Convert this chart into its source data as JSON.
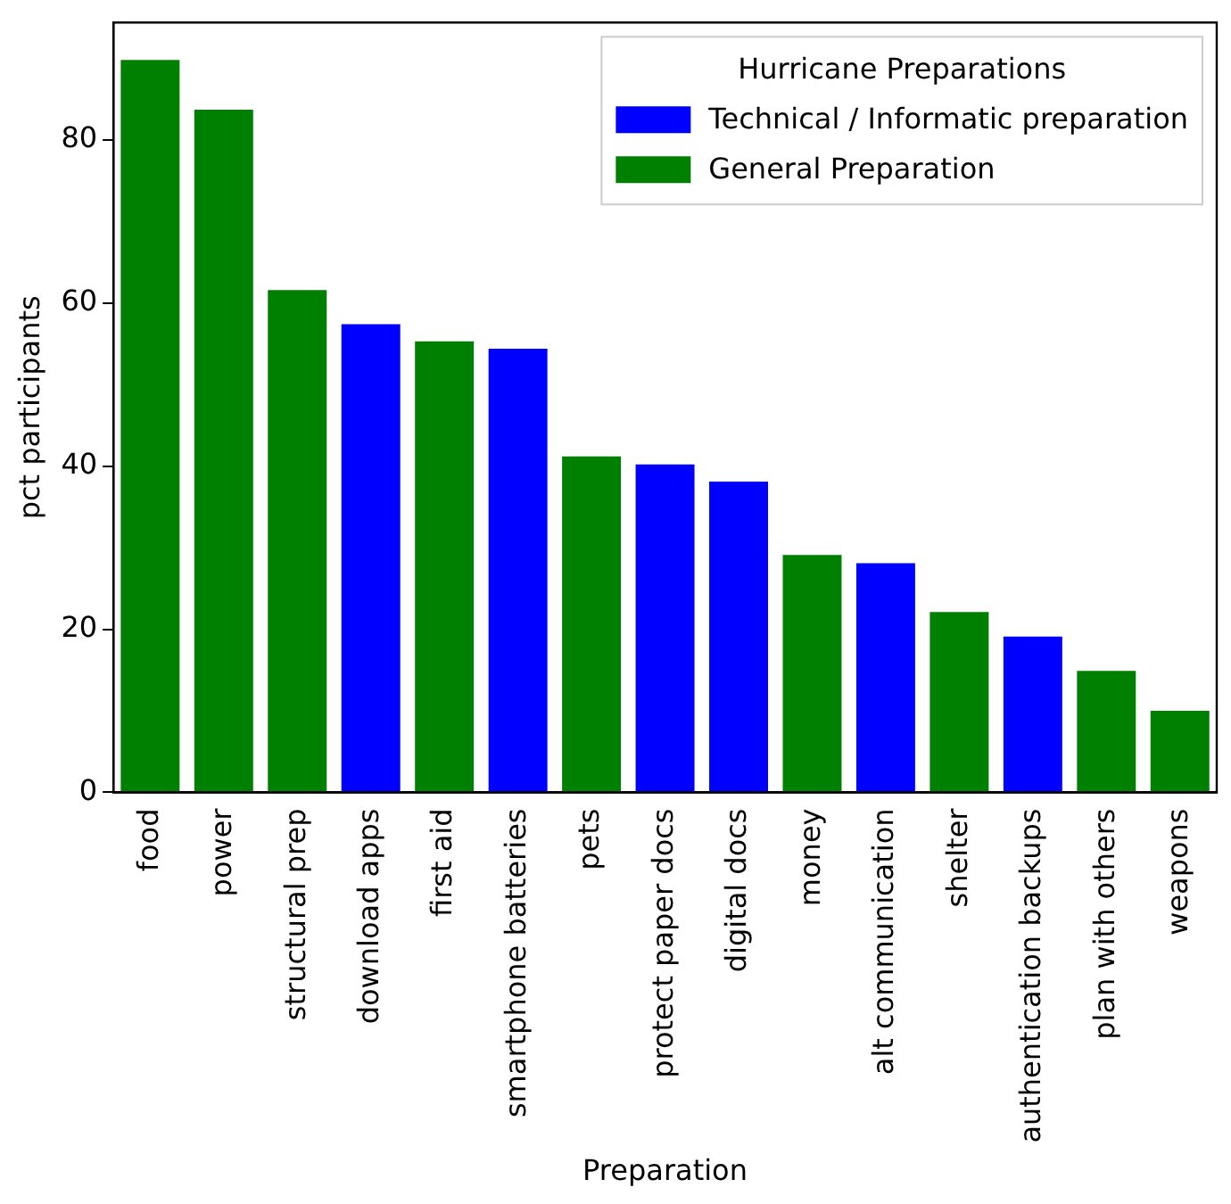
{
  "chart_data": {
    "type": "bar",
    "xlabel": "Preparation",
    "ylabel": "pct participants",
    "legend_title": "Hurricane Preparations",
    "legend": "top right",
    "grid": false,
    "categories": [
      "food",
      "power",
      "structural prep",
      "download apps",
      "first aid",
      "smartphone batteries",
      "pets",
      "protect paper docs",
      "digital docs",
      "money",
      "alt communication",
      "shelter",
      "authentication backups",
      "plan with others",
      "weapons"
    ],
    "series": [
      {
        "name": "Technical / Informatic preparation",
        "color": "#0000ff",
        "values": [
          null,
          null,
          null,
          57.4,
          null,
          54.4,
          null,
          40.2,
          38.1,
          null,
          28.1,
          null,
          19.1,
          null,
          null
        ]
      },
      {
        "name": "General Preparation",
        "color": "#008000",
        "values": [
          89.8,
          83.7,
          61.6,
          null,
          55.3,
          null,
          41.2,
          null,
          null,
          29.1,
          null,
          22.1,
          null,
          14.9,
          10
        ]
      }
    ],
    "ylim": [
      0,
      94.4
    ],
    "yticks": [
      0,
      20,
      40,
      60,
      80
    ]
  }
}
